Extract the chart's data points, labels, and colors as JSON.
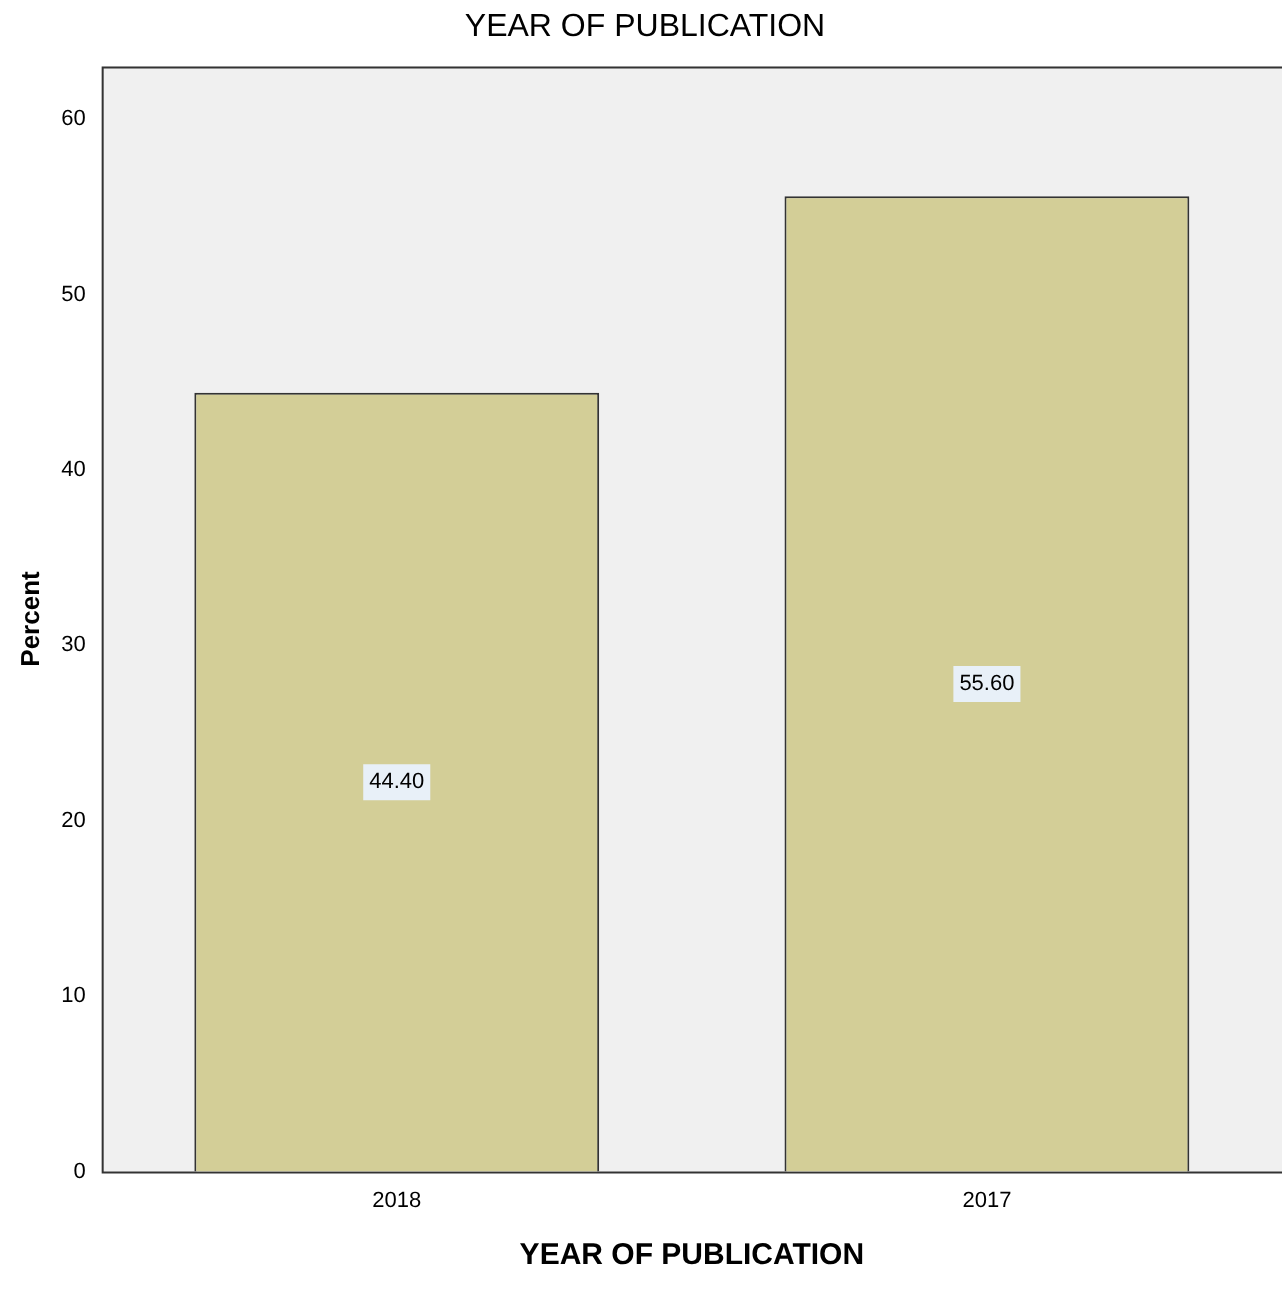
{
  "chart_data": {
    "type": "bar",
    "title": "YEAR OF PUBLICATION",
    "xlabel": "YEAR OF PUBLICATION",
    "ylabel": "Percent",
    "categories": [
      "2018",
      "2017"
    ],
    "values": [
      44.4,
      55.6
    ],
    "value_labels": [
      "44.40",
      "55.60"
    ],
    "color": "#d3ce97",
    "ylim": [
      0,
      63
    ],
    "yticks": [
      0,
      10,
      20,
      30,
      40,
      50,
      60
    ],
    "grid": false,
    "legend": false
  }
}
